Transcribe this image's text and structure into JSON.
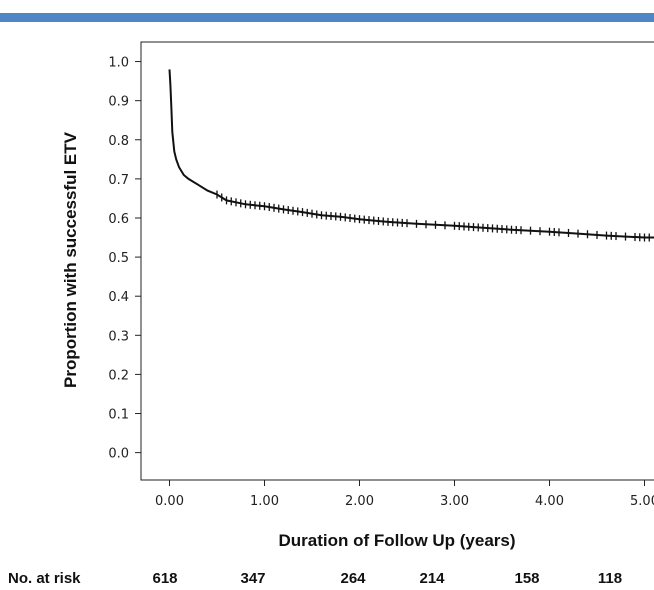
{
  "colors": {
    "banner": "#4f86c6",
    "curve": "#111111"
  },
  "chart_data": {
    "type": "line",
    "title": "",
    "xlabel": "Duration of Follow Up (years)",
    "ylabel": "Proportion with successful ETV",
    "xlim": [
      -0.3,
      5.1
    ],
    "ylim": [
      -0.07,
      1.05
    ],
    "x_ticks": [
      0,
      1,
      2,
      3,
      4,
      5
    ],
    "x_tick_labels": [
      "0.00",
      "1.00",
      "2.00",
      "3.00",
      "4.00",
      "5.00"
    ],
    "y_ticks": [
      0,
      0.1,
      0.2,
      0.3,
      0.4,
      0.5,
      0.6,
      0.7,
      0.8,
      0.9,
      1.0
    ],
    "y_tick_labels": [
      "0.0",
      "0.1",
      "0.2",
      "0.3",
      "0.4",
      "0.5",
      "0.6",
      "0.7",
      "0.8",
      "0.9",
      "1.0"
    ],
    "grid": false,
    "series": [
      {
        "x": [
          0,
          0.01,
          0.02,
          0.03,
          0.05,
          0.07,
          0.1,
          0.15,
          0.2,
          0.3,
          0.4,
          0.5,
          0.6,
          0.7,
          0.8,
          1.0,
          1.2,
          1.4,
          1.6,
          1.8,
          2.0,
          2.3,
          2.6,
          3.0,
          3.3,
          3.6,
          4.0,
          4.3,
          4.6,
          5.0,
          5.1
        ],
        "y": [
          0.98,
          0.94,
          0.88,
          0.82,
          0.77,
          0.75,
          0.73,
          0.71,
          0.7,
          0.685,
          0.67,
          0.66,
          0.645,
          0.64,
          0.635,
          0.63,
          0.622,
          0.615,
          0.607,
          0.603,
          0.597,
          0.59,
          0.585,
          0.58,
          0.575,
          0.57,
          0.565,
          0.56,
          0.555,
          0.55,
          0.55
        ]
      }
    ],
    "censor_marks": {
      "x": [
        0.5,
        0.55,
        0.6,
        0.65,
        0.7,
        0.75,
        0.8,
        0.85,
        0.9,
        0.95,
        1.0,
        1.05,
        1.1,
        1.15,
        1.2,
        1.25,
        1.3,
        1.35,
        1.4,
        1.45,
        1.5,
        1.55,
        1.6,
        1.65,
        1.7,
        1.75,
        1.8,
        1.85,
        1.9,
        1.95,
        2.0,
        2.05,
        2.1,
        2.15,
        2.2,
        2.25,
        2.3,
        2.35,
        2.4,
        2.45,
        2.5,
        2.6,
        2.7,
        2.8,
        2.9,
        3.0,
        3.05,
        3.1,
        3.15,
        3.2,
        3.25,
        3.3,
        3.35,
        3.4,
        3.45,
        3.5,
        3.55,
        3.6,
        3.65,
        3.7,
        3.8,
        3.9,
        4.0,
        4.05,
        4.1,
        4.2,
        4.3,
        4.4,
        4.5,
        4.6,
        4.65,
        4.7,
        4.8,
        4.9,
        4.95,
        5.0,
        5.05
      ]
    }
  },
  "risk_table": {
    "label": "No. at risk",
    "values": [
      "618",
      "347",
      "264",
      "214",
      "158",
      "118"
    ]
  }
}
